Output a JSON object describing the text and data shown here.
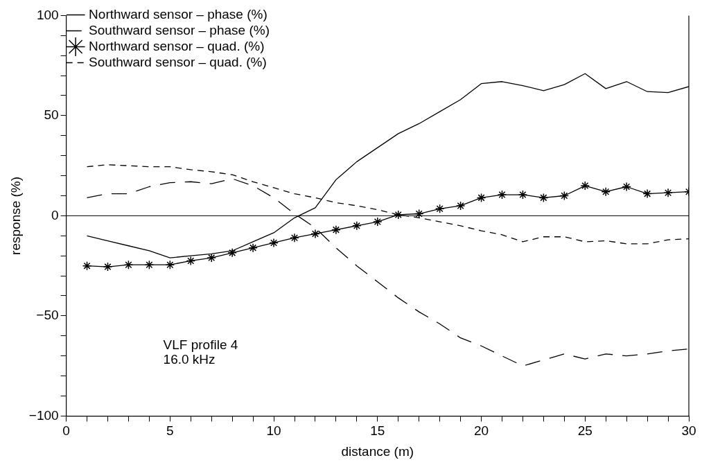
{
  "chart_data": {
    "type": "line",
    "xlabel": "distance (m)",
    "ylabel": "response (%)",
    "x": [
      1,
      2,
      3,
      4,
      5,
      6,
      7,
      8,
      9,
      10,
      11,
      12,
      13,
      14,
      15,
      16,
      17,
      18,
      19,
      20,
      21,
      22,
      23,
      24,
      25,
      26,
      27,
      28,
      29,
      30
    ],
    "series": [
      {
        "name": "Northward sensor – phase (%)",
        "color": "#000000",
        "line_style": "solid",
        "marker": "none",
        "values": [
          -10,
          -12.5,
          -15,
          -17.5,
          -21,
          -20,
          -19,
          -17.5,
          -13,
          -8.5,
          -1,
          4,
          18,
          27,
          34,
          41,
          46,
          52,
          58,
          66,
          67,
          65,
          62.5,
          65.5,
          71,
          63.5,
          67,
          62,
          61.5,
          64.5
        ]
      },
      {
        "name": "Southward sensor – phase (%)",
        "color": "#000000",
        "line_style": "dashed",
        "marker": "none",
        "values": [
          9,
          11,
          11,
          14.5,
          16.5,
          17,
          16,
          18.5,
          15,
          9,
          1,
          -6,
          -16,
          -25,
          -33,
          -41,
          -48,
          -54,
          -61,
          -65,
          -70,
          -75,
          -72,
          -69,
          -71.5,
          -69,
          -70,
          -69,
          -67.5,
          -66.5
        ]
      },
      {
        "name": "Northward sensor – quad. (%)",
        "color": "#000000",
        "line_style": "solid",
        "marker": "cross",
        "values": [
          -25,
          -25.5,
          -24.5,
          -24.5,
          -24.5,
          -22.5,
          -21,
          -18.5,
          -16,
          -13.5,
          -11,
          -9,
          -7,
          -5,
          -3,
          0.5,
          1,
          3.5,
          5,
          9,
          10.5,
          10.5,
          9,
          10,
          15,
          12,
          14.5,
          11,
          11.5,
          12
        ]
      },
      {
        "name": "Southward sensor – quad. (%)",
        "color": "#000000",
        "line_style": "dashed",
        "marker": "none",
        "values": [
          24.5,
          25.5,
          25,
          24.5,
          24.5,
          23,
          22,
          20.5,
          17,
          14,
          11,
          9,
          6.5,
          5,
          3,
          0.5,
          -1,
          -3,
          -5,
          -7.5,
          -9.5,
          -13,
          -10.5,
          -10.5,
          -13,
          -12.5,
          -14,
          -14,
          -12,
          -11.5
        ]
      }
    ],
    "xlim": [
      0,
      30
    ],
    "xticks": [
      0,
      {
        "value": 1,
        "label": null
      },
      {
        "value": 2,
        "label": null
      },
      {
        "value": 3,
        "label": null
      },
      {
        "value": 4,
        "label": null
      },
      5,
      {
        "value": 6,
        "label": null
      },
      {
        "value": 7,
        "label": null
      },
      {
        "value": 8,
        "label": null
      },
      {
        "value": 9,
        "label": null
      },
      10,
      {
        "value": 11,
        "label": null
      },
      {
        "value": 12,
        "label": null
      },
      {
        "value": 13,
        "label": null
      },
      {
        "value": 14,
        "label": null
      },
      15,
      {
        "value": 16,
        "label": null
      },
      {
        "value": 17,
        "label": null
      },
      {
        "value": 18,
        "label": null
      },
      {
        "value": 19,
        "label": null
      },
      20,
      {
        "value": 21,
        "label": null
      },
      {
        "value": 22,
        "label": null
      },
      {
        "value": 23,
        "label": null
      },
      {
        "value": 24,
        "label": null
      },
      25,
      {
        "value": 26,
        "label": null
      },
      {
        "value": 27,
        "label": null
      },
      {
        "value": 28,
        "label": null
      },
      {
        "value": 29,
        "label": null
      },
      30
    ],
    "ylim": [
      -100,
      100
    ],
    "yticks": [
      -100,
      {
        "value": -90,
        "label": null
      },
      {
        "value": -80,
        "label": null
      },
      {
        "value": -70,
        "label": null
      },
      {
        "value": -60,
        "label": null
      },
      -50,
      {
        "value": -40,
        "label": null
      },
      {
        "value": -30,
        "label": null
      },
      {
        "value": -20,
        "label": null
      },
      {
        "value": -10,
        "label": null
      },
      0,
      {
        "value": 10,
        "label": null
      },
      {
        "value": 20,
        "label": null
      },
      {
        "value": 30,
        "label": null
      },
      {
        "value": 40,
        "label": null
      },
      50,
      {
        "value": 60,
        "label": null
      },
      {
        "value": 70,
        "label": null
      },
      {
        "value": 80,
        "label": null
      },
      {
        "value": 90,
        "label": null
      },
      100
    ],
    "ref_lines": [
      {
        "axis": "y",
        "value": 0,
        "color": "#000000",
        "line_style": "solid"
      }
    ],
    "annotations": [
      "VLF profile 4",
      "16.0 kHz"
    ],
    "legend": "top left",
    "grid": false
  }
}
